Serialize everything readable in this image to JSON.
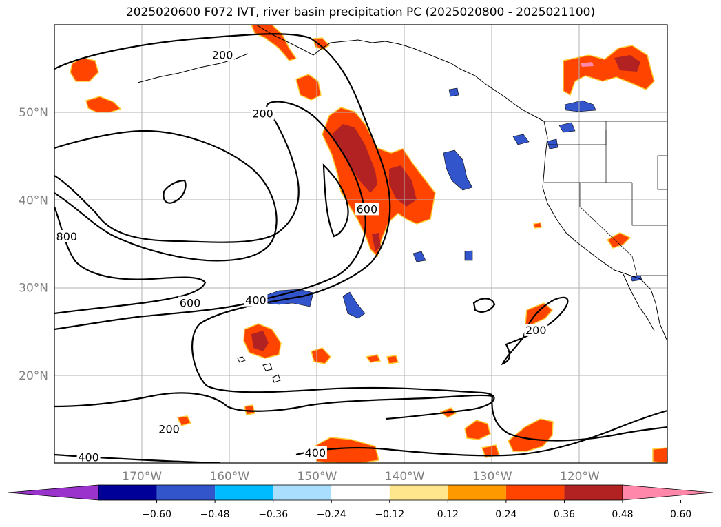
{
  "title": "2025020600 F072 IVT, river basin precipitation PC (2025020800 - 2025021100)",
  "map": {
    "lon_range": [
      -180,
      -110
    ],
    "lat_range": [
      10,
      60
    ],
    "lon_ticks": [
      {
        "value": -170,
        "label": "170°W"
      },
      {
        "value": -160,
        "label": "160°W"
      },
      {
        "value": -150,
        "label": "150°W"
      },
      {
        "value": -140,
        "label": "140°W"
      },
      {
        "value": -130,
        "label": "130°W"
      },
      {
        "value": -120,
        "label": "120°W"
      }
    ],
    "lat_ticks": [
      {
        "value": 50,
        "label": "50°N"
      },
      {
        "value": 40,
        "label": "40°N"
      },
      {
        "value": 30,
        "label": "30°N"
      },
      {
        "value": 20,
        "label": "20°N"
      }
    ],
    "contour_labels": [
      {
        "text": "200",
        "lon": -160.8,
        "lat": 56.5
      },
      {
        "text": "200",
        "lon": -156.2,
        "lat": 49.8
      },
      {
        "text": "600",
        "lon": -144.3,
        "lat": 38.9
      },
      {
        "text": "800",
        "lon": -178.6,
        "lat": 35.8
      },
      {
        "text": "600",
        "lon": -164.5,
        "lat": 28.2
      },
      {
        "text": "400",
        "lon": -157.0,
        "lat": 28.5
      },
      {
        "text": "200",
        "lon": -125.0,
        "lat": 25.1
      },
      {
        "text": "200",
        "lon": -166.9,
        "lat": 13.8
      },
      {
        "text": "400",
        "lon": -176.1,
        "lat": 10.6
      },
      {
        "text": "400",
        "lon": -150.2,
        "lat": 11.1
      }
    ]
  },
  "colorbar": {
    "colors": [
      "#9933cc",
      "#000099",
      "#3355cc",
      "#00bbff",
      "#aadeff",
      "#ffffff",
      "#ffe68c",
      "#ff9900",
      "#ff4400",
      "#b22222",
      "#ff88aa"
    ],
    "tick_labels": [
      "−0.60",
      "−0.48",
      "−0.36",
      "−0.24",
      "−0.12",
      "0.12",
      "0.24",
      "0.36",
      "0.48",
      "0.60"
    ]
  }
}
